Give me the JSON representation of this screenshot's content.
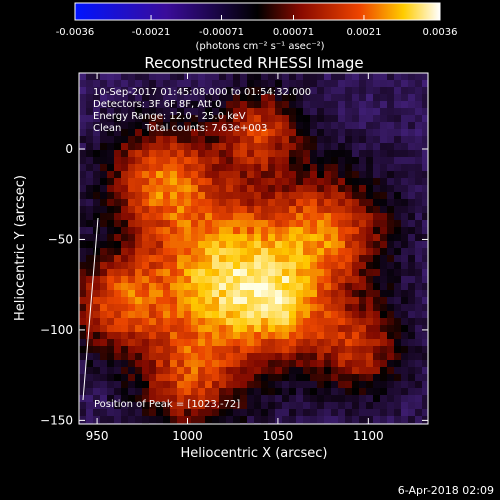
{
  "colorbar": {
    "ticks": [
      "-0.0036",
      "-0.0021",
      "-0.00071",
      "0.00071",
      "0.0021",
      "0.0036"
    ],
    "tick_values": [
      -0.0036,
      -0.0021,
      -0.00071,
      0.00071,
      0.0021,
      0.0036
    ],
    "range": [
      -0.0036,
      0.0036
    ],
    "unit_label": "(photons cm⁻² s⁻¹ asec⁻²)"
  },
  "chart_data": {
    "type": "heatmap",
    "title": "Reconstructed RHESSI Image",
    "xlabel": "Heliocentric X (arcsec)",
    "ylabel": "Heliocentric Y (arcsec)",
    "xlim": [
      940,
      1133
    ],
    "ylim": [
      -152,
      42
    ],
    "x_ticks": [
      950,
      1000,
      1050,
      1100
    ],
    "x_tick_labels": [
      "950",
      "1000",
      "1050",
      "1100"
    ],
    "y_ticks": [
      0,
      -50,
      -100,
      -150
    ],
    "y_tick_labels": [
      "0",
      "−50",
      "−100",
      "−150"
    ],
    "annotations": [
      "10-Sep-2017 01:45:08.000 to 01:54:32.000",
      "Detectors: 3F 6F 8F, Att 0",
      "Energy Range: 12.0 - 25.0 keV",
      "Clean",
      "Total counts: 7.63e+003"
    ],
    "peak_label": "Position of Peak = [1023,-72]",
    "peak": [
      1023,
      -72
    ],
    "colormap": "purple-blue-black-red-yellow-white",
    "grid": false
  },
  "footer": {
    "date": "6-Apr-2018 02:09"
  }
}
